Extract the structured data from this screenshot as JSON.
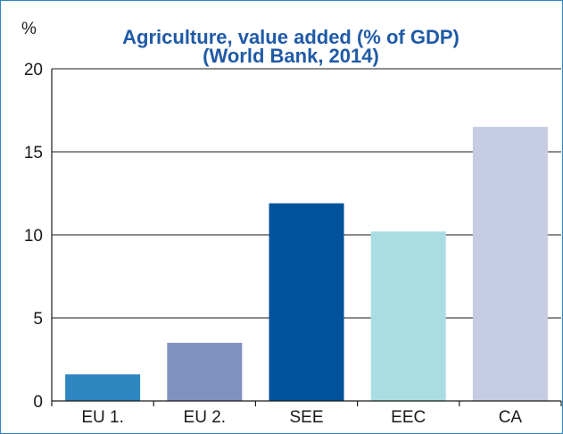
{
  "chart_data": {
    "type": "bar",
    "title": "Agriculture, value added (% of GDP)",
    "subtitle": "(World Bank, 2014)",
    "ylabel": "%",
    "categories": [
      "EU 1.",
      "EU 2.",
      "SEE",
      "EEC",
      "CA"
    ],
    "values": [
      1.6,
      3.5,
      11.9,
      10.2,
      16.5
    ],
    "colors": [
      "#2e86c1",
      "#7f92bf",
      "#00529b",
      "#a9dde3",
      "#c5cce4"
    ],
    "ylim": [
      0,
      20
    ],
    "yticks": [
      0,
      5,
      10,
      15,
      20
    ],
    "grid": true,
    "legend": "none"
  },
  "colors": {
    "title": "#1f5aa6",
    "frame": "#2e86c1"
  }
}
